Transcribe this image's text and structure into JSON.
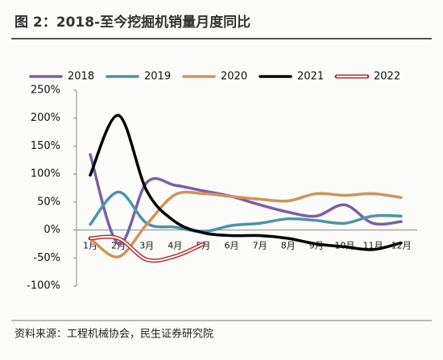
{
  "chart_data": {
    "type": "line",
    "title": "图 2：2018-至今挖掘机销量月度同比",
    "source": "资料来源：工程机械协会，民生证券研究院",
    "categories": [
      "1月",
      "2月",
      "3月",
      "4月",
      "5月",
      "6月",
      "7月",
      "8月",
      "9月",
      "10月",
      "11月",
      "12月"
    ],
    "series": [
      {
        "name": "2018",
        "color": "#7b5ea7",
        "values": [
          135,
          -25,
          85,
          80,
          70,
          60,
          45,
          32,
          25,
          45,
          12,
          15
        ]
      },
      {
        "name": "2019",
        "color": "#4a94a8",
        "values": [
          10,
          68,
          12,
          5,
          -3,
          8,
          12,
          20,
          17,
          12,
          25,
          25
        ]
      },
      {
        "name": "2020",
        "color": "#d29355",
        "values": [
          -15,
          -48,
          10,
          63,
          65,
          60,
          55,
          52,
          65,
          62,
          65,
          58
        ]
      },
      {
        "name": "2021",
        "color": "#000000",
        "values": [
          98,
          205,
          70,
          15,
          -5,
          -10,
          -10,
          -15,
          -25,
          -30,
          -35,
          -23
        ]
      },
      {
        "name": "2022",
        "color": "#b8312f",
        "double": true,
        "values": [
          -15,
          -15,
          -53,
          -47,
          -25,
          null,
          null,
          null,
          null,
          null,
          null,
          null
        ]
      }
    ],
    "ylim": [
      -100,
      250
    ],
    "yticks": [
      {
        "value": -100,
        "label": "-100%"
      },
      {
        "value": -50,
        "label": "-50%"
      },
      {
        "value": 0,
        "label": "0%"
      },
      {
        "value": 50,
        "label": "50%"
      },
      {
        "value": 100,
        "label": "100%"
      },
      {
        "value": 150,
        "label": "150%"
      },
      {
        "value": 200,
        "label": "200%"
      },
      {
        "value": 250,
        "label": "250%"
      }
    ]
  }
}
